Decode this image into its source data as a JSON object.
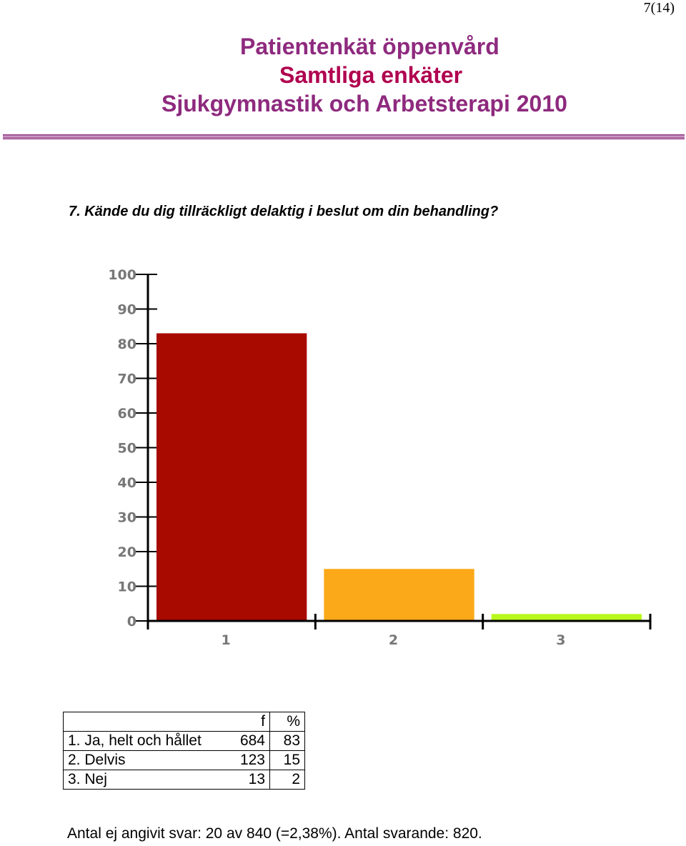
{
  "page": {
    "number": "7(14)"
  },
  "header": {
    "line1": "Patientenkät öppenvård",
    "line2": "Samtliga enkäter",
    "line3": "Sjukgymnastik och Arbetsterapi 2010"
  },
  "question": "7. Kände du dig tillräckligt delaktig i beslut om din behandling?",
  "chart_data": {
    "type": "bar",
    "categories": [
      "1",
      "2",
      "3"
    ],
    "values": [
      83,
      15,
      2
    ],
    "colors": [
      "#a90a00",
      "#fca919",
      "#b9f81c"
    ],
    "ylim": [
      0,
      100
    ],
    "yticks": [
      0,
      10,
      20,
      30,
      40,
      50,
      60,
      70,
      80,
      90,
      100
    ],
    "title": "",
    "xlabel": "",
    "ylabel": ""
  },
  "table": {
    "headers": [
      "",
      "f",
      "%"
    ],
    "rows": [
      [
        "1. Ja, helt och hållet",
        "684",
        "83"
      ],
      [
        "2. Delvis",
        "123",
        "15"
      ],
      [
        "3. Nej",
        "13",
        "2"
      ]
    ]
  },
  "footer": "Antal ej angivit svar: 20 av 840 (=2,38%). Antal svarande:  820."
}
